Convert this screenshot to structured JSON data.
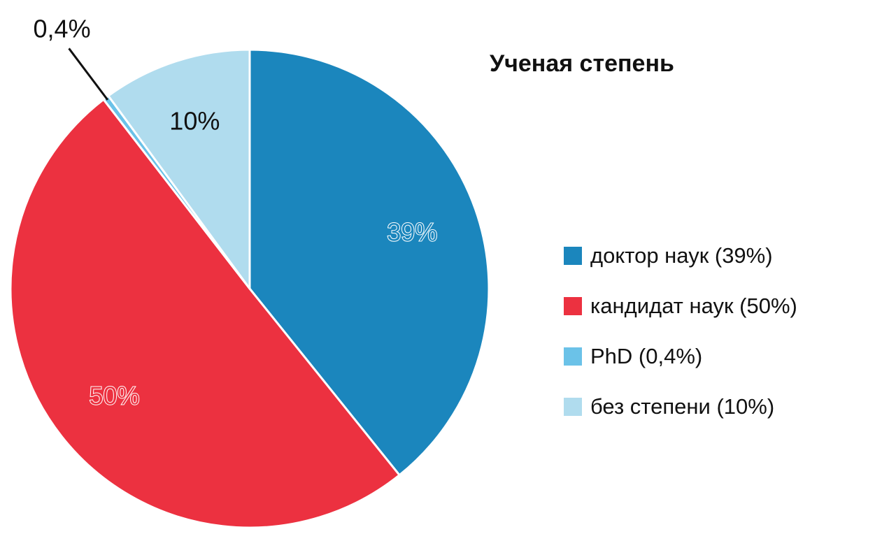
{
  "chart_data": {
    "type": "pie",
    "title": "Ученая степень",
    "slices": [
      {
        "label": "доктор наук (39%)",
        "value": 39,
        "value_label": "39%",
        "color": "#1b86bd"
      },
      {
        "label": "кандидат наук (50%)",
        "value": 50,
        "value_label": "50%",
        "color": "#ec3140"
      },
      {
        "label": "PhD (0,4%)",
        "value": 0.4,
        "value_label": "0,4%",
        "color": "#6bc2e8"
      },
      {
        "label": "без степени (10%)",
        "value": 10,
        "value_label": "10%",
        "color": "#b0dcee"
      }
    ],
    "start_angle": "12 o'clock",
    "direction": "clockwise",
    "legend_position": "right"
  }
}
